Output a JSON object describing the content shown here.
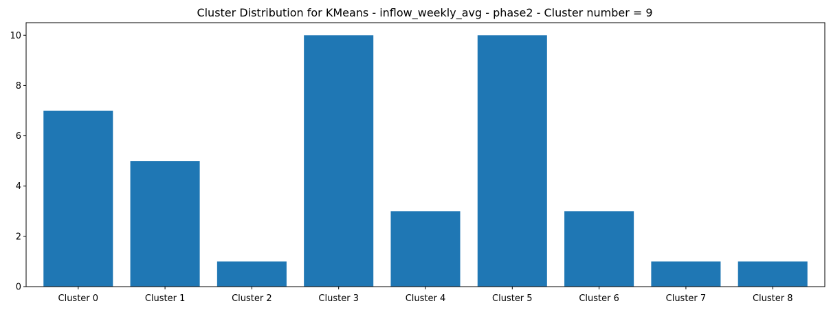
{
  "chart_data": {
    "type": "bar",
    "title": "Cluster Distribution for KMeans - inflow_weekly_avg - phase2 - Cluster number = 9",
    "xlabel": "",
    "ylabel": "",
    "categories": [
      "Cluster 0",
      "Cluster 1",
      "Cluster 2",
      "Cluster 3",
      "Cluster 4",
      "Cluster 5",
      "Cluster 6",
      "Cluster 7",
      "Cluster 8"
    ],
    "values": [
      7,
      5,
      1,
      10,
      3,
      10,
      3,
      1,
      1
    ],
    "ylim": [
      0,
      10.5
    ],
    "yticks": [
      0,
      2,
      4,
      6,
      8,
      10
    ],
    "bar_color": "#1f77b4",
    "grid": false,
    "legend": "none"
  }
}
